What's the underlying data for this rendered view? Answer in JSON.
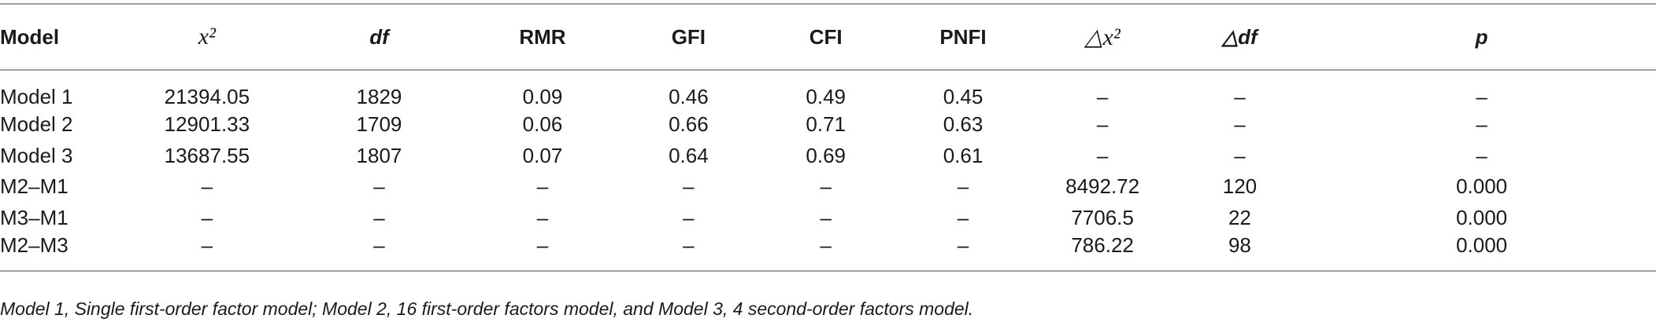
{
  "table": {
    "headers": [
      {
        "text": "Model",
        "style": "plain"
      },
      {
        "text": "x²",
        "style": "serif"
      },
      {
        "text": "df",
        "style": "italic"
      },
      {
        "text": "RMR",
        "style": "plain"
      },
      {
        "text": "GFI",
        "style": "plain"
      },
      {
        "text": "CFI",
        "style": "plain"
      },
      {
        "text": "PNFI",
        "style": "plain"
      },
      {
        "text": "△x²",
        "style": "serif"
      },
      {
        "text": "△df",
        "style": "italic"
      },
      {
        "text": "p",
        "style": "italic"
      }
    ],
    "rows": [
      [
        "Model 1",
        "21394.05",
        "1829",
        "0.09",
        "0.46",
        "0.49",
        "0.45",
        "–",
        "–",
        "–"
      ],
      [
        "Model 2",
        "12901.33",
        "1709",
        "0.06",
        "0.66",
        "0.71",
        "0.63",
        "–",
        "–",
        "–"
      ],
      [
        "Model 3",
        "13687.55",
        "1807",
        "0.07",
        "0.64",
        "0.69",
        "0.61",
        "–",
        "–",
        "–"
      ],
      [
        "M2–M1",
        "–",
        "–",
        "–",
        "–",
        "–",
        "–",
        "8492.72",
        "120",
        "0.000"
      ],
      [
        "M3–M1",
        "–",
        "–",
        "–",
        "–",
        "–",
        "–",
        "7706.5",
        "22",
        "0.000"
      ],
      [
        "M2–M3",
        "–",
        "–",
        "–",
        "–",
        "–",
        "–",
        "786.22",
        "98",
        "0.000"
      ]
    ]
  },
  "footnote": "Model 1, Single first-order factor model; Model 2, 16 first-order factors model, and Model 3, 4 second-order factors model."
}
